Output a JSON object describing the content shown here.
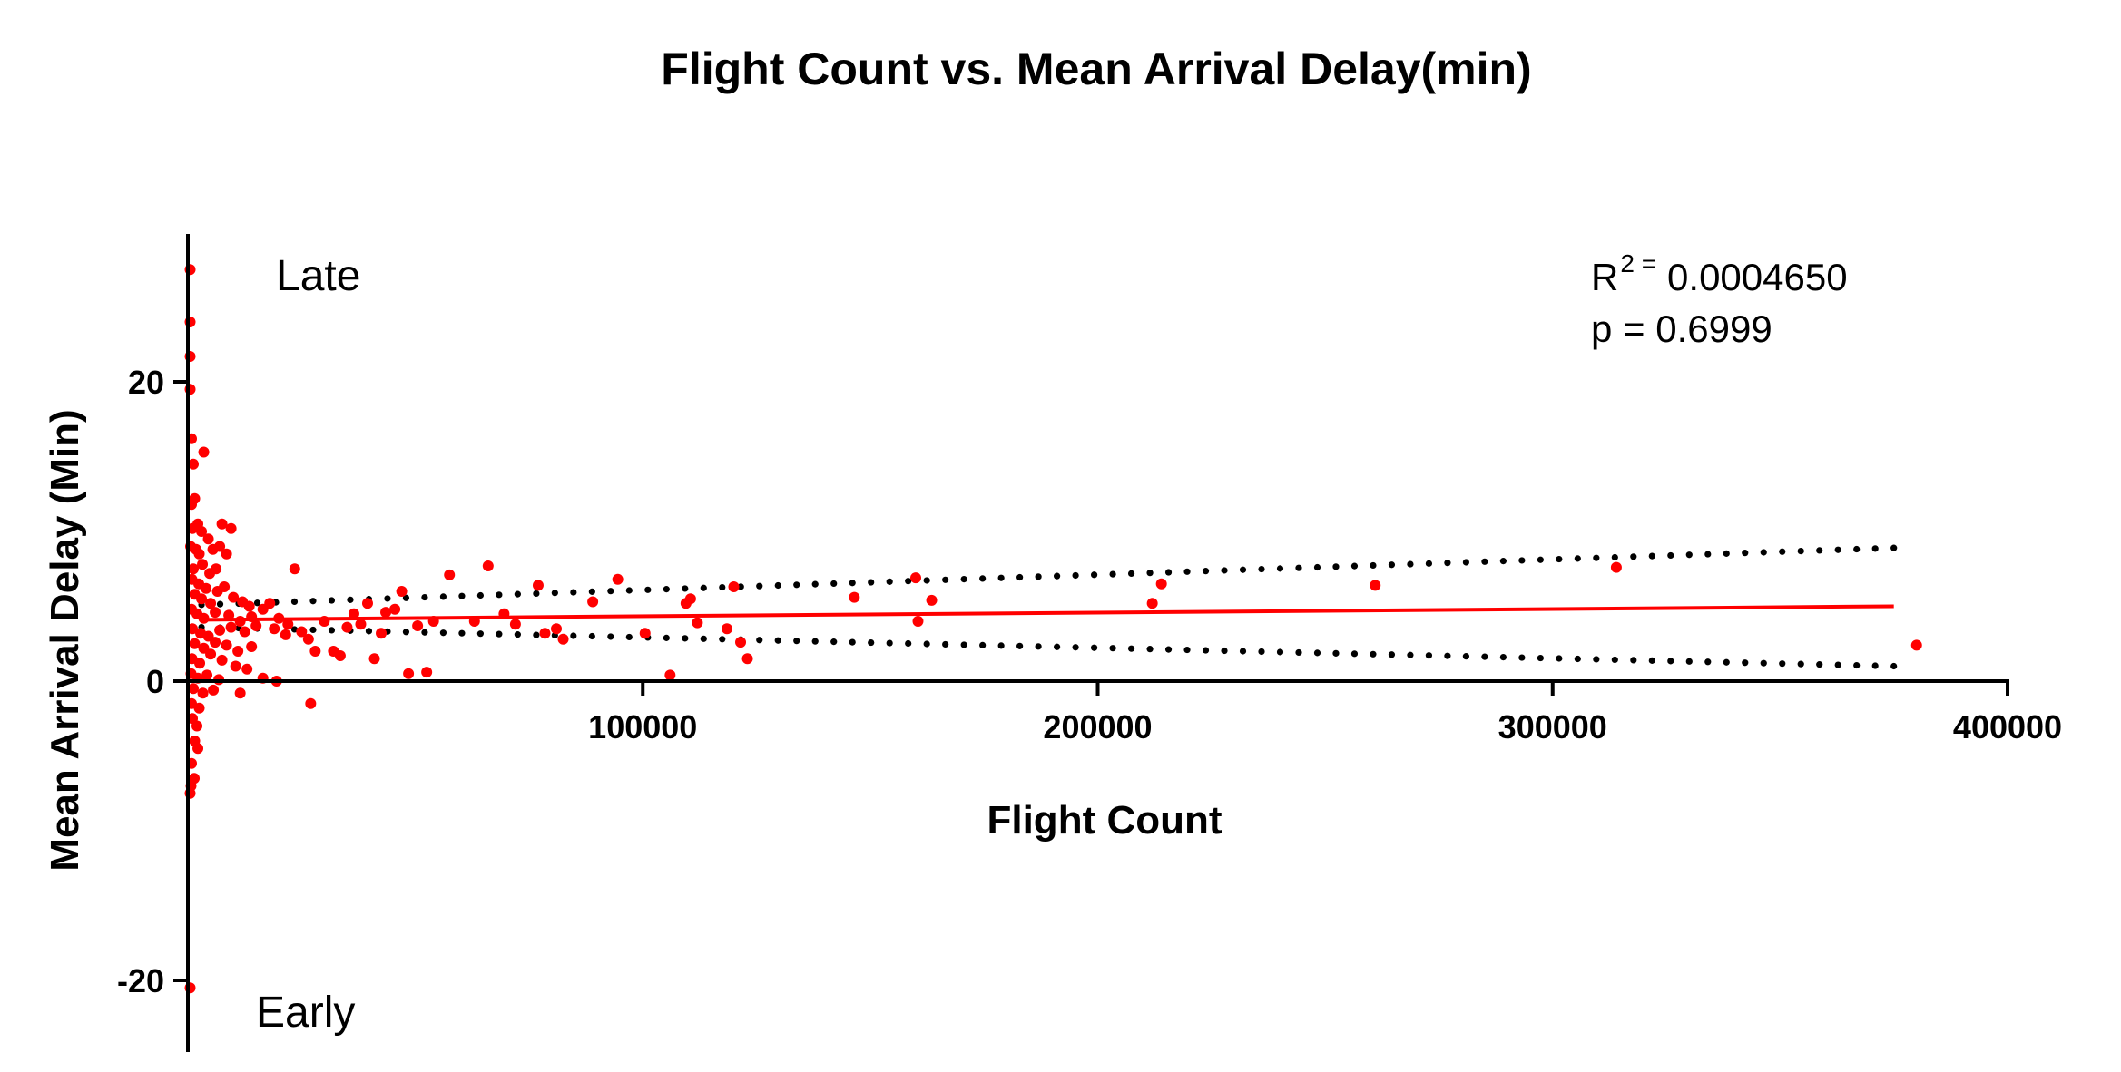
{
  "chart_data": {
    "type": "scatter",
    "title": "Flight Count vs. Mean Arrival Delay(min)",
    "xlabel": "Flight Count",
    "ylabel": "Mean Arrival Delay (Min)",
    "xlim": [
      0,
      400000
    ],
    "ylim": [
      -25,
      30
    ],
    "x_ticks": [
      100000,
      200000,
      300000,
      400000
    ],
    "x_tick_labels": [
      "100000",
      "200000",
      "300000",
      "400000"
    ],
    "y_ticks": [
      -20,
      0,
      20
    ],
    "y_tick_labels": [
      "-20",
      "0",
      "20"
    ],
    "grid": false,
    "annotations": {
      "late": "Late",
      "early": "Early"
    },
    "stats": {
      "r2_label": "R",
      "r2_sup": "2 =",
      "r2_value": "0.0004650",
      "p_text": "p = 0.6999"
    },
    "colors": {
      "points": "#ff0000",
      "fit": "#ff0000",
      "confidence": "#000000",
      "axes": "#000000"
    },
    "fit_line": {
      "x": [
        3000,
        375000
      ],
      "y": [
        4.1,
        5.0
      ]
    },
    "confidence_upper": {
      "x": [
        3000,
        375000
      ],
      "y": [
        5.1,
        8.9
      ]
    },
    "confidence_lower": {
      "x": [
        3000,
        375000
      ],
      "y": [
        3.6,
        1.0
      ]
    },
    "points": [
      {
        "x": 500,
        "y": 27.5
      },
      {
        "x": 500,
        "y": 24.0
      },
      {
        "x": 500,
        "y": 21.7
      },
      {
        "x": 500,
        "y": 19.5
      },
      {
        "x": 800,
        "y": 16.2
      },
      {
        "x": 1200,
        "y": 14.5
      },
      {
        "x": 1500,
        "y": 12.2
      },
      {
        "x": 800,
        "y": 11.8
      },
      {
        "x": 3500,
        "y": 15.3
      },
      {
        "x": 2200,
        "y": 10.5
      },
      {
        "x": 1000,
        "y": 10.2
      },
      {
        "x": 3000,
        "y": 10.0
      },
      {
        "x": 4500,
        "y": 9.5
      },
      {
        "x": 7500,
        "y": 10.5
      },
      {
        "x": 9500,
        "y": 10.2
      },
      {
        "x": 600,
        "y": 9.0
      },
      {
        "x": 1800,
        "y": 8.8
      },
      {
        "x": 2500,
        "y": 8.5
      },
      {
        "x": 5500,
        "y": 8.8
      },
      {
        "x": 7000,
        "y": 9.0
      },
      {
        "x": 8500,
        "y": 8.5
      },
      {
        "x": 1200,
        "y": 7.5
      },
      {
        "x": 3200,
        "y": 7.8
      },
      {
        "x": 4800,
        "y": 7.2
      },
      {
        "x": 6200,
        "y": 7.5
      },
      {
        "x": 900,
        "y": 6.8
      },
      {
        "x": 2400,
        "y": 6.5
      },
      {
        "x": 4000,
        "y": 6.2
      },
      {
        "x": 6500,
        "y": 6.0
      },
      {
        "x": 8000,
        "y": 6.3
      },
      {
        "x": 1500,
        "y": 5.8
      },
      {
        "x": 3000,
        "y": 5.5
      },
      {
        "x": 5000,
        "y": 5.2
      },
      {
        "x": 10000,
        "y": 5.6
      },
      {
        "x": 12000,
        "y": 5.3
      },
      {
        "x": 13500,
        "y": 5.0
      },
      {
        "x": 800,
        "y": 4.8
      },
      {
        "x": 2000,
        "y": 4.5
      },
      {
        "x": 3500,
        "y": 4.2
      },
      {
        "x": 6000,
        "y": 4.6
      },
      {
        "x": 9000,
        "y": 4.4
      },
      {
        "x": 11500,
        "y": 4.0
      },
      {
        "x": 14000,
        "y": 4.3
      },
      {
        "x": 16500,
        "y": 4.8
      },
      {
        "x": 18000,
        "y": 5.2
      },
      {
        "x": 20000,
        "y": 4.2
      },
      {
        "x": 22000,
        "y": 3.8
      },
      {
        "x": 1000,
        "y": 3.5
      },
      {
        "x": 2800,
        "y": 3.2
      },
      {
        "x": 4500,
        "y": 3.0
      },
      {
        "x": 7000,
        "y": 3.4
      },
      {
        "x": 9500,
        "y": 3.6
      },
      {
        "x": 12500,
        "y": 3.3
      },
      {
        "x": 15000,
        "y": 3.7
      },
      {
        "x": 19000,
        "y": 3.5
      },
      {
        "x": 21500,
        "y": 3.1
      },
      {
        "x": 1500,
        "y": 2.5
      },
      {
        "x": 3500,
        "y": 2.2
      },
      {
        "x": 6000,
        "y": 2.6
      },
      {
        "x": 8500,
        "y": 2.4
      },
      {
        "x": 11000,
        "y": 2.0
      },
      {
        "x": 14000,
        "y": 2.3
      },
      {
        "x": 900,
        "y": 1.5
      },
      {
        "x": 2600,
        "y": 1.2
      },
      {
        "x": 5000,
        "y": 1.8
      },
      {
        "x": 7500,
        "y": 1.4
      },
      {
        "x": 10500,
        "y": 1.0
      },
      {
        "x": 13000,
        "y": 0.8
      },
      {
        "x": 700,
        "y": 0.5
      },
      {
        "x": 2200,
        "y": 0.2
      },
      {
        "x": 4200,
        "y": 0.4
      },
      {
        "x": 6800,
        "y": 0.1
      },
      {
        "x": 16500,
        "y": 0.2
      },
      {
        "x": 19500,
        "y": 0.0
      },
      {
        "x": 1200,
        "y": -0.5
      },
      {
        "x": 3300,
        "y": -0.8
      },
      {
        "x": 5600,
        "y": -0.6
      },
      {
        "x": 11500,
        "y": -0.8
      },
      {
        "x": 800,
        "y": -1.5
      },
      {
        "x": 2500,
        "y": -1.8
      },
      {
        "x": 1000,
        "y": -2.5
      },
      {
        "x": 2000,
        "y": -3.0
      },
      {
        "x": 1500,
        "y": -4.0
      },
      {
        "x": 2200,
        "y": -4.5
      },
      {
        "x": 800,
        "y": -5.5
      },
      {
        "x": 1400,
        "y": -6.5
      },
      {
        "x": 700,
        "y": -7.0
      },
      {
        "x": 500,
        "y": -7.5
      },
      {
        "x": 500,
        "y": -20.5
      },
      {
        "x": 23500,
        "y": 7.5
      },
      {
        "x": 25000,
        "y": 3.3
      },
      {
        "x": 26500,
        "y": 2.8
      },
      {
        "x": 27000,
        "y": -1.5
      },
      {
        "x": 28000,
        "y": 2.0
      },
      {
        "x": 30000,
        "y": 4.0
      },
      {
        "x": 32000,
        "y": 2.0
      },
      {
        "x": 33500,
        "y": 1.7
      },
      {
        "x": 35000,
        "y": 3.6
      },
      {
        "x": 36500,
        "y": 4.5
      },
      {
        "x": 38000,
        "y": 3.8
      },
      {
        "x": 39500,
        "y": 5.2
      },
      {
        "x": 41000,
        "y": 1.5
      },
      {
        "x": 42500,
        "y": 3.2
      },
      {
        "x": 43500,
        "y": 4.6
      },
      {
        "x": 45500,
        "y": 4.8
      },
      {
        "x": 47000,
        "y": 6.0
      },
      {
        "x": 48500,
        "y": 0.5
      },
      {
        "x": 50500,
        "y": 3.7
      },
      {
        "x": 52500,
        "y": 0.6
      },
      {
        "x": 54000,
        "y": 4.0
      },
      {
        "x": 57500,
        "y": 7.1
      },
      {
        "x": 63000,
        "y": 4.0
      },
      {
        "x": 66000,
        "y": 7.7
      },
      {
        "x": 69500,
        "y": 4.5
      },
      {
        "x": 72000,
        "y": 3.8
      },
      {
        "x": 77000,
        "y": 6.4
      },
      {
        "x": 78500,
        "y": 3.2
      },
      {
        "x": 81000,
        "y": 3.5
      },
      {
        "x": 82500,
        "y": 2.8
      },
      {
        "x": 89000,
        "y": 5.3
      },
      {
        "x": 94500,
        "y": 6.8
      },
      {
        "x": 100500,
        "y": 3.2
      },
      {
        "x": 106000,
        "y": 0.4
      },
      {
        "x": 109500,
        "y": 5.2
      },
      {
        "x": 110500,
        "y": 5.5
      },
      {
        "x": 112000,
        "y": 3.9
      },
      {
        "x": 118500,
        "y": 3.5
      },
      {
        "x": 120000,
        "y": 6.3
      },
      {
        "x": 121500,
        "y": 2.6
      },
      {
        "x": 123000,
        "y": 1.5
      },
      {
        "x": 146500,
        "y": 5.6
      },
      {
        "x": 160000,
        "y": 6.9
      },
      {
        "x": 160500,
        "y": 4.0
      },
      {
        "x": 163500,
        "y": 5.4
      },
      {
        "x": 212000,
        "y": 5.2
      },
      {
        "x": 214000,
        "y": 6.5
      },
      {
        "x": 261000,
        "y": 6.4
      },
      {
        "x": 314000,
        "y": 7.6
      },
      {
        "x": 380000,
        "y": 2.4
      }
    ]
  }
}
